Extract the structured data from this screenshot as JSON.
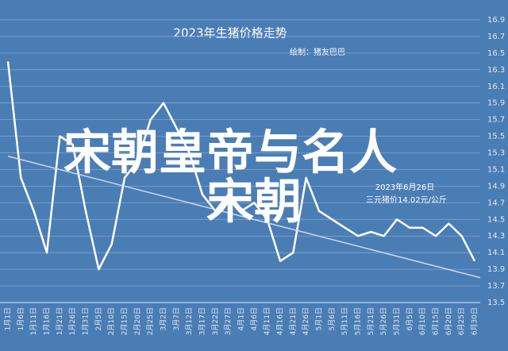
{
  "chart_data": {
    "type": "line",
    "title": "2023年生猪价格走势",
    "subtitle": "绘制：猪友巴巴",
    "categories": [
      "1月1日",
      "1月6日",
      "1月11日",
      "1月16日",
      "1月21日",
      "1月26日",
      "1月31日",
      "2月5日",
      "2月10日",
      "2月15日",
      "2月20日",
      "2月25日",
      "3月2日",
      "3月7日",
      "3月12日",
      "3月17日",
      "3月22日",
      "3月27日",
      "4月1日",
      "4月6日",
      "4月11日",
      "4月16日",
      "4月21日",
      "4月26日",
      "5月1日",
      "5月6日",
      "5月11日",
      "5月16日",
      "5月21日",
      "5月26日",
      "5月31日",
      "6月5日",
      "6月10日",
      "6月15日",
      "6月20日",
      "6月25日",
      "6月30日"
    ],
    "series": [
      {
        "color": "#ffffff",
        "values": [
          16.4,
          15.0,
          14.6,
          14.1,
          15.5,
          15.4,
          14.6,
          13.9,
          14.2,
          15.0,
          15.2,
          15.7,
          15.9,
          15.6,
          15.3,
          14.8,
          14.6,
          14.8,
          14.6,
          14.7,
          14.5,
          14.0,
          14.1,
          15.0,
          14.6,
          14.5,
          14.4,
          14.3,
          14.35,
          14.3,
          14.5,
          14.4,
          14.4,
          14.3,
          14.45,
          14.3,
          14.0
        ]
      }
    ],
    "trendline": [
      15.26,
      13.8
    ],
    "ylim": [
      13.5,
      16.9
    ],
    "yticks": [
      13.5,
      13.7,
      13.9,
      14.1,
      14.3,
      14.5,
      14.7,
      14.9,
      15.1,
      15.3,
      15.5,
      15.7,
      15.9,
      16.1,
      16.3,
      16.5,
      16.7,
      16.9
    ],
    "grid": true,
    "annotation": [
      "2023年6月26日",
      "三元猪价14.02元/公斤"
    ],
    "overlay": [
      "宋朝皇帝与名人",
      "宋朝"
    ]
  }
}
